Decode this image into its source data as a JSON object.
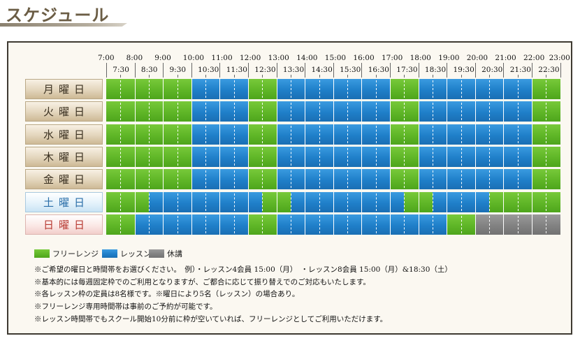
{
  "title": "スケジュール",
  "times_hour": [
    "7:00",
    "8:00",
    "9:00",
    "10:00",
    "11:00",
    "12:00",
    "13:00",
    "14:00",
    "15:00",
    "16:00",
    "17:00",
    "18:00",
    "19:00",
    "20:00",
    "21:00",
    "22:00",
    "23:00"
  ],
  "times_half": [
    "7:30",
    "8:30",
    "9:30",
    "10:30",
    "11:30",
    "12:30",
    "13:30",
    "14:30",
    "15:30",
    "16:30",
    "17:30",
    "18:30",
    "19:30",
    "20:30",
    "21:30",
    "22:30"
  ],
  "days": [
    {
      "label": "月曜日",
      "type": "weekday",
      "segments": [
        {
          "start": 7,
          "end": 10,
          "kind": "free"
        },
        {
          "start": 10,
          "end": 12,
          "kind": "lesson"
        },
        {
          "start": 12,
          "end": 13,
          "kind": "free"
        },
        {
          "start": 13,
          "end": 17,
          "kind": "lesson"
        },
        {
          "start": 17,
          "end": 18,
          "kind": "free"
        },
        {
          "start": 18,
          "end": 22,
          "kind": "lesson"
        },
        {
          "start": 22,
          "end": 23,
          "kind": "free"
        }
      ]
    },
    {
      "label": "火曜日",
      "type": "weekday",
      "segments": [
        {
          "start": 7,
          "end": 10,
          "kind": "free"
        },
        {
          "start": 10,
          "end": 12,
          "kind": "lesson"
        },
        {
          "start": 12,
          "end": 13,
          "kind": "free"
        },
        {
          "start": 13,
          "end": 17,
          "kind": "lesson"
        },
        {
          "start": 17,
          "end": 18,
          "kind": "free"
        },
        {
          "start": 18,
          "end": 22,
          "kind": "lesson"
        },
        {
          "start": 22,
          "end": 23,
          "kind": "free"
        }
      ]
    },
    {
      "label": "水曜日",
      "type": "weekday",
      "segments": [
        {
          "start": 7,
          "end": 10,
          "kind": "free"
        },
        {
          "start": 10,
          "end": 12,
          "kind": "lesson"
        },
        {
          "start": 12,
          "end": 13,
          "kind": "free"
        },
        {
          "start": 13,
          "end": 17,
          "kind": "lesson"
        },
        {
          "start": 17,
          "end": 18,
          "kind": "free"
        },
        {
          "start": 18,
          "end": 22,
          "kind": "lesson"
        },
        {
          "start": 22,
          "end": 23,
          "kind": "free"
        }
      ]
    },
    {
      "label": "木曜日",
      "type": "weekday",
      "segments": [
        {
          "start": 7,
          "end": 10,
          "kind": "free"
        },
        {
          "start": 10,
          "end": 12,
          "kind": "lesson"
        },
        {
          "start": 12,
          "end": 13,
          "kind": "free"
        },
        {
          "start": 13,
          "end": 17,
          "kind": "lesson"
        },
        {
          "start": 17,
          "end": 18,
          "kind": "free"
        },
        {
          "start": 18,
          "end": 22,
          "kind": "lesson"
        },
        {
          "start": 22,
          "end": 23,
          "kind": "free"
        }
      ]
    },
    {
      "label": "金曜日",
      "type": "weekday",
      "segments": [
        {
          "start": 7,
          "end": 10,
          "kind": "free"
        },
        {
          "start": 10,
          "end": 12,
          "kind": "lesson"
        },
        {
          "start": 12,
          "end": 13,
          "kind": "free"
        },
        {
          "start": 13,
          "end": 17,
          "kind": "lesson"
        },
        {
          "start": 17,
          "end": 18,
          "kind": "free"
        },
        {
          "start": 18,
          "end": 22,
          "kind": "lesson"
        },
        {
          "start": 22,
          "end": 23,
          "kind": "free"
        }
      ]
    },
    {
      "label": "土曜日",
      "type": "sat",
      "segments": [
        {
          "start": 7,
          "end": 8.5,
          "kind": "free"
        },
        {
          "start": 8.5,
          "end": 12.5,
          "kind": "lesson"
        },
        {
          "start": 12.5,
          "end": 13.5,
          "kind": "free"
        },
        {
          "start": 13.5,
          "end": 17.5,
          "kind": "lesson"
        },
        {
          "start": 17.5,
          "end": 18.5,
          "kind": "free"
        },
        {
          "start": 18.5,
          "end": 20.5,
          "kind": "lesson"
        },
        {
          "start": 20.5,
          "end": 23,
          "kind": "free"
        }
      ]
    },
    {
      "label": "日曜日",
      "type": "sun",
      "segments": [
        {
          "start": 7,
          "end": 8,
          "kind": "free"
        },
        {
          "start": 8,
          "end": 12,
          "kind": "lesson"
        },
        {
          "start": 12,
          "end": 13,
          "kind": "free"
        },
        {
          "start": 13,
          "end": 19,
          "kind": "lesson"
        },
        {
          "start": 19,
          "end": 20,
          "kind": "free"
        },
        {
          "start": 20,
          "end": 23,
          "kind": "closed"
        }
      ]
    }
  ],
  "colors": {
    "free": "#5fb627",
    "lesson": "#1f7fc9",
    "closed": "#828282"
  },
  "legend": [
    {
      "kind": "free",
      "label": "フリーレンジ"
    },
    {
      "kind": "lesson",
      "label": "レッスン"
    },
    {
      "kind": "closed",
      "label": "休講"
    }
  ],
  "notes": [
    "※ご希望の曜日と時間帯をお選びください。　例）・レッスン4会員 15:00（月）　・レッスン8会員 15:00（月）&18:30（土）",
    "※基本的には毎週固定枠でのご利用となりますが、ご都合に応じて振り替えでのご対応もいたします。",
    "※各レッスン枠の定員は8名様です。※曜日により5名（レッスン）の場合あり。",
    "※フリーレンジ専用時間帯は事前のご予約が可能です。",
    "※レッスン時間帯でもスクール開始10分前に枠が空いていれば、フリーレンジとしてご利用いただけます。"
  ]
}
